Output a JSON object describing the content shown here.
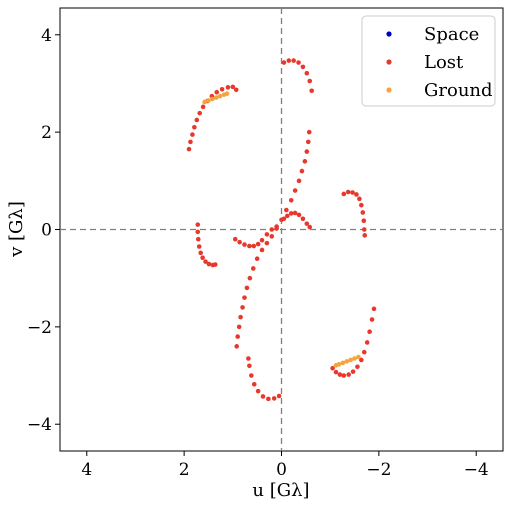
{
  "chart_data": {
    "type": "scatter",
    "xlabel": "u [Gλ]",
    "ylabel": "v [Gλ]",
    "xlim": [
      4.55,
      -4.55
    ],
    "ylim": [
      -4.55,
      4.55
    ],
    "x_ticks": [
      4,
      2,
      0,
      -2,
      -4
    ],
    "y_ticks": [
      4,
      2,
      0,
      -2,
      -4
    ],
    "x_tick_labels": [
      "4",
      "2",
      "0",
      "−2",
      "−4"
    ],
    "y_tick_labels": [
      "4",
      "2",
      "0",
      "−2",
      "−4"
    ],
    "zero_lines": "dashed",
    "grid": false,
    "legend_position": "top-right",
    "series": [
      {
        "name": "Space",
        "color": "#0000cc",
        "points": []
      },
      {
        "name": "Lost",
        "color": "#e8382b",
        "points": [
          [
            1.9,
            1.65
          ],
          [
            1.87,
            1.8
          ],
          [
            1.83,
            1.95
          ],
          [
            1.79,
            2.1
          ],
          [
            1.74,
            2.25
          ],
          [
            1.68,
            2.39
          ],
          [
            1.61,
            2.52
          ],
          [
            1.52,
            2.64
          ],
          [
            1.43,
            2.74
          ],
          [
            1.33,
            2.82
          ],
          [
            1.22,
            2.88
          ],
          [
            1.1,
            2.92
          ],
          [
            1.0,
            2.93
          ],
          [
            0.93,
            2.87
          ],
          [
            -0.05,
            3.43
          ],
          [
            -0.15,
            3.47
          ],
          [
            -0.25,
            3.47
          ],
          [
            -0.35,
            3.43
          ],
          [
            -0.44,
            3.34
          ],
          [
            -0.52,
            3.21
          ],
          [
            -0.58,
            3.05
          ],
          [
            -0.62,
            2.85
          ],
          [
            -0.57,
            2.0
          ],
          [
            -0.55,
            1.8
          ],
          [
            -0.52,
            1.6
          ],
          [
            -0.48,
            1.4
          ],
          [
            -0.42,
            1.2
          ],
          [
            -0.36,
            1.0
          ],
          [
            -0.28,
            0.8
          ],
          [
            -0.2,
            0.6
          ],
          [
            -0.1,
            0.4
          ],
          [
            0.0,
            0.2
          ],
          [
            0.1,
            0.02
          ],
          [
            0.2,
            -0.14
          ],
          [
            0.3,
            -0.28
          ],
          [
            0.4,
            -0.42
          ],
          [
            0.5,
            -0.6
          ],
          [
            0.58,
            -0.8
          ],
          [
            0.65,
            -1.0
          ],
          [
            0.71,
            -1.2
          ],
          [
            0.76,
            -1.4
          ],
          [
            0.8,
            -1.6
          ],
          [
            0.84,
            -1.8
          ],
          [
            0.87,
            -2.0
          ],
          [
            0.9,
            -2.2
          ],
          [
            0.92,
            -2.4
          ],
          [
            0.68,
            -2.65
          ],
          [
            0.66,
            -2.8
          ],
          [
            0.62,
            -3.0
          ],
          [
            0.56,
            -3.18
          ],
          [
            0.48,
            -3.32
          ],
          [
            0.38,
            -3.43
          ],
          [
            0.27,
            -3.48
          ],
          [
            0.15,
            -3.47
          ],
          [
            0.05,
            -3.42
          ],
          [
            -1.05,
            -2.85
          ],
          [
            -1.12,
            -2.93
          ],
          [
            -1.2,
            -2.98
          ],
          [
            -1.28,
            -3.0
          ],
          [
            -1.38,
            -2.98
          ],
          [
            -1.47,
            -2.92
          ],
          [
            -1.56,
            -2.82
          ],
          [
            -1.64,
            -2.68
          ],
          [
            -1.7,
            -2.52
          ],
          [
            -1.76,
            -2.32
          ],
          [
            -1.81,
            -2.1
          ],
          [
            -1.86,
            -1.85
          ],
          [
            -1.9,
            -1.63
          ],
          [
            1.72,
            0.1
          ],
          [
            1.72,
            -0.05
          ],
          [
            1.71,
            -0.2
          ],
          [
            1.69,
            -0.35
          ],
          [
            1.66,
            -0.48
          ],
          [
            1.62,
            -0.58
          ],
          [
            1.56,
            -0.66
          ],
          [
            1.49,
            -0.71
          ],
          [
            1.41,
            -0.73
          ],
          [
            1.36,
            -0.72
          ],
          [
            -1.28,
            0.73
          ],
          [
            -1.37,
            0.77
          ],
          [
            -1.46,
            0.76
          ],
          [
            -1.54,
            0.72
          ],
          [
            -1.6,
            0.63
          ],
          [
            -1.64,
            0.5
          ],
          [
            -1.67,
            0.35
          ],
          [
            -1.69,
            0.18
          ],
          [
            -1.7,
            0.0
          ],
          [
            -1.71,
            -0.12
          ],
          [
            0.95,
            -0.2
          ],
          [
            0.86,
            -0.26
          ],
          [
            0.76,
            -0.31
          ],
          [
            0.66,
            -0.34
          ],
          [
            0.57,
            -0.34
          ],
          [
            0.48,
            -0.3
          ],
          [
            0.4,
            -0.22
          ],
          [
            0.3,
            -0.1
          ],
          [
            0.2,
            0.0
          ],
          [
            0.1,
            0.06
          ],
          [
            -0.05,
            0.22
          ],
          [
            -0.12,
            0.28
          ],
          [
            -0.2,
            0.33
          ],
          [
            -0.28,
            0.34
          ],
          [
            -0.36,
            0.3
          ],
          [
            -0.44,
            0.22
          ],
          [
            -0.52,
            0.12
          ],
          [
            -0.58,
            0.05
          ]
        ]
      },
      {
        "name": "Ground",
        "color": "#f5a43b",
        "points": [
          [
            1.58,
            2.62
          ],
          [
            1.5,
            2.65
          ],
          [
            1.42,
            2.68
          ],
          [
            1.34,
            2.71
          ],
          [
            1.26,
            2.74
          ],
          [
            1.18,
            2.77
          ],
          [
            1.12,
            2.79
          ],
          [
            -1.12,
            -2.79
          ],
          [
            -1.18,
            -2.77
          ],
          [
            -1.26,
            -2.74
          ],
          [
            -1.34,
            -2.71
          ],
          [
            -1.42,
            -2.68
          ],
          [
            -1.5,
            -2.65
          ],
          [
            -1.58,
            -2.62
          ]
        ]
      }
    ]
  }
}
